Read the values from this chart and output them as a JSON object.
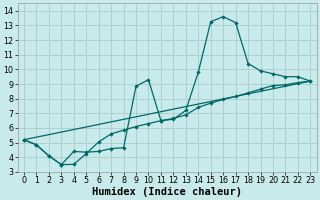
{
  "bg_color": "#c9eaea",
  "grid_color": "#aacccc",
  "line_color": "#006868",
  "xlabel": "Humidex (Indice chaleur)",
  "xlabel_fontsize": 7.5,
  "tick_fontsize": 5.8,
  "xlim": [
    -0.5,
    23.5
  ],
  "ylim": [
    3,
    14.5
  ],
  "yticks": [
    3,
    4,
    5,
    6,
    7,
    8,
    9,
    10,
    11,
    12,
    13,
    14
  ],
  "xticks": [
    0,
    1,
    2,
    3,
    4,
    5,
    6,
    7,
    8,
    9,
    10,
    11,
    12,
    13,
    14,
    15,
    16,
    17,
    18,
    19,
    20,
    21,
    22,
    23
  ],
  "line1_x": [
    0,
    1,
    2,
    3,
    4,
    5,
    6,
    7,
    8,
    9,
    10,
    11,
    12,
    13,
    14,
    15,
    16,
    17,
    18,
    19,
    20,
    21,
    22,
    23
  ],
  "line1_y": [
    5.2,
    4.85,
    4.1,
    3.5,
    4.4,
    4.35,
    4.4,
    4.6,
    4.65,
    8.85,
    9.3,
    6.5,
    6.6,
    7.2,
    9.8,
    13.25,
    13.6,
    13.2,
    10.4,
    9.9,
    9.7,
    9.5,
    9.5,
    9.2
  ],
  "line2_x": [
    0,
    1,
    2,
    3,
    4,
    5,
    6,
    7,
    8,
    9,
    10,
    11,
    12,
    13,
    14,
    15,
    16,
    17,
    18,
    19,
    20,
    21,
    22,
    23
  ],
  "line2_y": [
    5.2,
    4.85,
    4.1,
    3.5,
    3.52,
    4.25,
    5.05,
    5.6,
    5.85,
    6.1,
    6.3,
    6.5,
    6.65,
    6.9,
    7.4,
    7.7,
    7.95,
    8.15,
    8.4,
    8.65,
    8.9,
    8.95,
    9.1,
    9.2
  ],
  "line3_x": [
    0,
    23
  ],
  "line3_y": [
    5.2,
    9.2
  ],
  "marker_size": 2.2,
  "line_width": 0.9
}
